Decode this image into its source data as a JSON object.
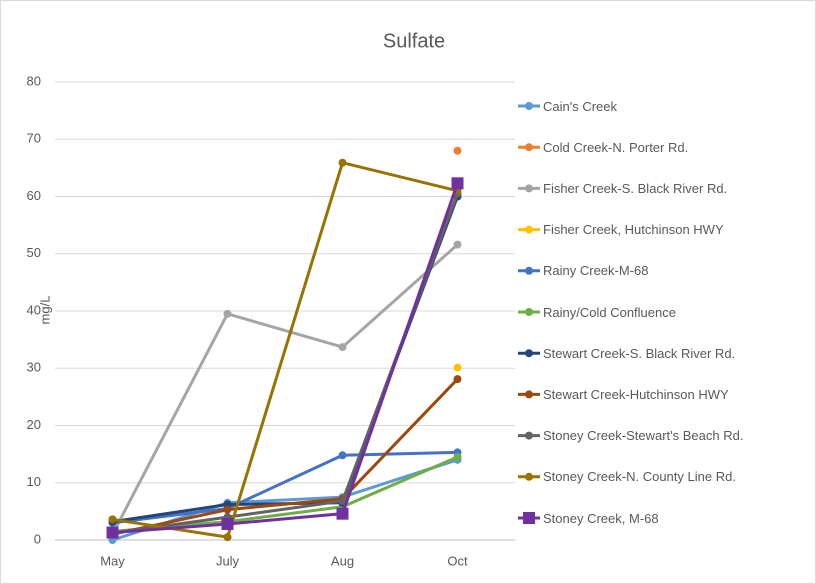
{
  "chart_data": {
    "type": "line",
    "title": "Sulfate",
    "y_label": "mg/L",
    "categories": [
      "May",
      "July",
      "Aug",
      "Oct"
    ],
    "ylim": [
      0,
      80
    ],
    "yticks": [
      0,
      10,
      20,
      30,
      40,
      50,
      60,
      70,
      80
    ],
    "grid": true,
    "legend": "right",
    "series": [
      {
        "name": "Cain's Creek",
        "color": "#5b9bd5",
        "marker": "circle",
        "values": [
          0,
          6.5,
          7.5,
          14
        ]
      },
      {
        "name": "Cold Creek-N. Porter Rd.",
        "color": "#ed7d31",
        "marker": "circle",
        "values": [
          null,
          null,
          null,
          68
        ]
      },
      {
        "name": "Fisher Creek-S. Black River Rd.",
        "color": "#a5a5a5",
        "marker": "circle",
        "values": [
          1,
          39.5,
          33.7,
          51.6
        ]
      },
      {
        "name": "Fisher Creek, Hutchinson HWY",
        "color": "#ffc000",
        "marker": "circle",
        "values": [
          null,
          null,
          null,
          30.1
        ]
      },
      {
        "name": "Rainy Creek-M-68",
        "color": "#4472c4",
        "marker": "circle",
        "values": [
          3,
          5.5,
          14.8,
          15.3
        ]
      },
      {
        "name": "Rainy/Cold Confluence",
        "color": "#70ad47",
        "marker": "circle",
        "values": [
          1.5,
          3.2,
          5.8,
          14.5
        ]
      },
      {
        "name": "Stewart Creek-S. Black River Rd.",
        "color": "#264478",
        "marker": "circle",
        "values": [
          3.2,
          6.2,
          6.5,
          60
        ]
      },
      {
        "name": "Stewart Creek-Hutchinson HWY",
        "color": "#9e480e",
        "marker": "circle",
        "values": [
          1,
          5.3,
          7.2,
          28.1
        ]
      },
      {
        "name": "Stoney Creek-Stewart's Beach Rd.",
        "color": "#636363",
        "marker": "circle",
        "values": [
          1.2,
          4,
          6.8,
          60.5
        ]
      },
      {
        "name": "Stoney Creek-N. County Line Rd.",
        "color": "#997300",
        "marker": "circle",
        "values": [
          3.6,
          0.5,
          65.9,
          61
        ]
      },
      {
        "name": "Stoney Creek, M-68",
        "color": "#7030a0",
        "marker": "square",
        "values": [
          1.3,
          2.8,
          4.6,
          62.3
        ]
      }
    ]
  }
}
